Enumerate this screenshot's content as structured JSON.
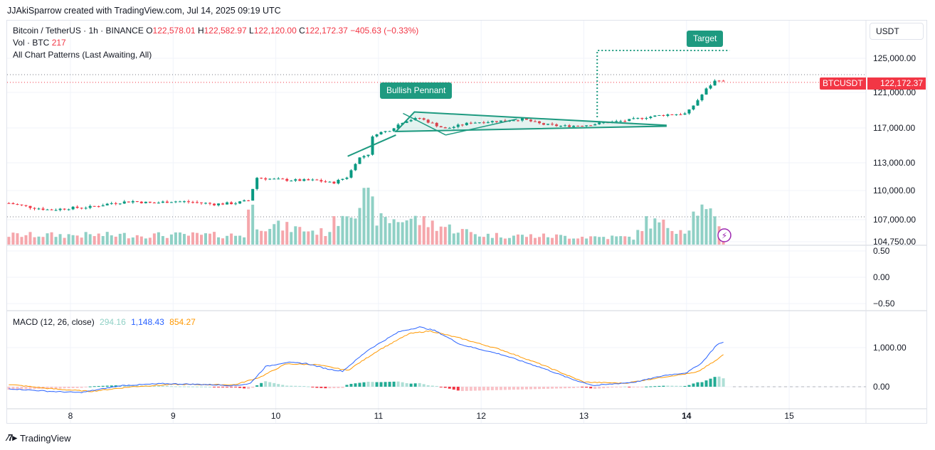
{
  "header": {
    "credit": "JJAkiSparrow created with TradingView.com, Jul 14, 2025 09:19 UTC"
  },
  "legend": {
    "pair": "Bitcoin / TetherUS · 1h · BINANCE",
    "open_label": "O",
    "open": "122,578.01",
    "high_label": "H",
    "high": "122,582.97",
    "low_label": "L",
    "low": "122,120.00",
    "close_label": "C",
    "close": "122,172.37",
    "change": "−405.63 (−0.33%)",
    "volume_label": "Vol · BTC",
    "volume": "217",
    "patterns": "All Chart Patterns (Last Awaiting, All)"
  },
  "currency": "USDT",
  "price_tag": {
    "symbol": "BTCUSDT",
    "price": "122,172.37"
  },
  "labels": {
    "target": "Target",
    "pennant": "Bullish Pennant"
  },
  "macd": {
    "label": "MACD (12, 26, close)",
    "histogram": "294.16",
    "macd": "1,148.43",
    "signal": "854.27"
  },
  "footer": {
    "logo_text": "TradingView",
    "logo_icon": "tradingview-logo-icon"
  },
  "colors": {
    "up": "#089981",
    "down": "#f23645",
    "macd_line": "#2962ff",
    "signal_line": "#ff9800",
    "vol_up": "#8fd0c5",
    "vol_down": "#f5a6ab",
    "pattern": "#1e9a80"
  },
  "chart_data": [
    {
      "type": "candlestick",
      "title": "Bitcoin / TetherUS · 1h · BINANCE",
      "y_axis_ticks": [
        "125,000.00",
        "121,000.00",
        "117,000.00",
        "113,000.00",
        "110,000.00",
        "107,000.00",
        "104,750.00"
      ],
      "x_axis_ticks": [
        "8",
        "9",
        "10",
        "11",
        "12",
        "13",
        "14",
        "15"
      ],
      "ylim": [
        104750,
        126500
      ],
      "last_price": 122172.37,
      "close_path": [
        {
          "t": 7.4,
          "v": 108700
        },
        {
          "t": 7.6,
          "v": 108300
        },
        {
          "t": 7.8,
          "v": 108000
        },
        {
          "t": 8.0,
          "v": 108200
        },
        {
          "t": 8.2,
          "v": 108300
        },
        {
          "t": 8.4,
          "v": 108700
        },
        {
          "t": 8.6,
          "v": 108900
        },
        {
          "t": 8.8,
          "v": 108700
        },
        {
          "t": 9.0,
          "v": 108900
        },
        {
          "t": 9.2,
          "v": 108800
        },
        {
          "t": 9.4,
          "v": 108600
        },
        {
          "t": 9.6,
          "v": 108700
        },
        {
          "t": 9.75,
          "v": 109000
        },
        {
          "t": 9.8,
          "v": 111400
        },
        {
          "t": 10.0,
          "v": 111200
        },
        {
          "t": 10.2,
          "v": 111100
        },
        {
          "t": 10.4,
          "v": 111100
        },
        {
          "t": 10.55,
          "v": 110800
        },
        {
          "t": 10.7,
          "v": 111500
        },
        {
          "t": 10.8,
          "v": 113500
        },
        {
          "t": 10.9,
          "v": 114000
        },
        {
          "t": 10.95,
          "v": 116300
        },
        {
          "t": 11.1,
          "v": 116700
        },
        {
          "t": 11.25,
          "v": 117800
        },
        {
          "t": 11.4,
          "v": 118100
        },
        {
          "t": 11.65,
          "v": 116900
        },
        {
          "t": 11.9,
          "v": 117600
        },
        {
          "t": 12.2,
          "v": 117800
        },
        {
          "t": 12.4,
          "v": 118000
        },
        {
          "t": 12.6,
          "v": 117400
        },
        {
          "t": 12.8,
          "v": 117200
        },
        {
          "t": 13.0,
          "v": 117300
        },
        {
          "t": 13.2,
          "v": 117600
        },
        {
          "t": 13.4,
          "v": 117800
        },
        {
          "t": 13.6,
          "v": 118200
        },
        {
          "t": 13.8,
          "v": 118500
        },
        {
          "t": 14.0,
          "v": 118600
        },
        {
          "t": 14.1,
          "v": 120000
        },
        {
          "t": 14.2,
          "v": 121500
        },
        {
          "t": 14.3,
          "v": 122600
        },
        {
          "t": 14.37,
          "v": 122172
        }
      ],
      "patterns": [
        {
          "name": "Bullish Pennant",
          "flagpole_start": {
            "t": 10.7,
            "v": 111400
          },
          "flagpole_end": {
            "t": 11.35,
            "v": 118000
          },
          "upper": [
            {
              "t": 11.35,
              "v": 118800
            },
            {
              "t": 13.8,
              "v": 117300
            }
          ],
          "lower": [
            {
              "t": 11.17,
              "v": 116600
            },
            {
              "t": 13.8,
              "v": 117200
            }
          ]
        },
        {
          "name": "Target",
          "from": {
            "t": 13.13,
            "v": 118000
          },
          "level": 125400,
          "to_t": 14.42
        }
      ]
    },
    {
      "type": "bar",
      "title": "Vol · BTC",
      "last_value": 217,
      "relative_level_path": [
        {
          "t": 7.4,
          "v": 0.2
        },
        {
          "t": 9.7,
          "v": 0.2
        },
        {
          "t": 9.75,
          "v": 1.0
        },
        {
          "t": 9.8,
          "v": 0.45
        },
        {
          "t": 10.5,
          "v": 0.25
        },
        {
          "t": 10.65,
          "v": 0.7
        },
        {
          "t": 10.9,
          "v": 1.0
        },
        {
          "t": 11.0,
          "v": 0.5
        },
        {
          "t": 11.3,
          "v": 0.55
        },
        {
          "t": 12.0,
          "v": 0.2
        },
        {
          "t": 13.5,
          "v": 0.15
        },
        {
          "t": 13.6,
          "v": 0.5
        },
        {
          "t": 14.0,
          "v": 0.3
        },
        {
          "t": 14.1,
          "v": 0.8
        },
        {
          "t": 14.37,
          "v": 0.35
        }
      ]
    },
    {
      "type": "line",
      "title": "",
      "y_axis_ticks": [
        "0.50",
        "0.00",
        "−0.50"
      ],
      "ylim": [
        -0.5,
        0.5
      ]
    },
    {
      "type": "line",
      "title": "MACD (12, 26, close)",
      "y_axis_ticks": [
        "1,000.00",
        "0.00"
      ],
      "ylim": [
        -220,
        1750
      ],
      "series": [
        {
          "name": "MACD",
          "values": [
            {
              "t": 7.4,
              "v": -50
            },
            {
              "t": 7.8,
              "v": -120
            },
            {
              "t": 8.1,
              "v": -150
            },
            {
              "t": 8.5,
              "v": 30
            },
            {
              "t": 8.9,
              "v": 80
            },
            {
              "t": 9.3,
              "v": 60
            },
            {
              "t": 9.6,
              "v": 30
            },
            {
              "t": 9.75,
              "v": 80
            },
            {
              "t": 9.9,
              "v": 520
            },
            {
              "t": 10.1,
              "v": 630
            },
            {
              "t": 10.3,
              "v": 600
            },
            {
              "t": 10.5,
              "v": 460
            },
            {
              "t": 10.65,
              "v": 400
            },
            {
              "t": 10.9,
              "v": 950
            },
            {
              "t": 11.2,
              "v": 1420
            },
            {
              "t": 11.4,
              "v": 1540
            },
            {
              "t": 11.55,
              "v": 1450
            },
            {
              "t": 11.8,
              "v": 1090
            },
            {
              "t": 12.2,
              "v": 830
            },
            {
              "t": 12.6,
              "v": 480
            },
            {
              "t": 12.9,
              "v": 180
            },
            {
              "t": 13.1,
              "v": 30
            },
            {
              "t": 13.5,
              "v": 120
            },
            {
              "t": 13.8,
              "v": 300
            },
            {
              "t": 14.0,
              "v": 360
            },
            {
              "t": 14.15,
              "v": 620
            },
            {
              "t": 14.3,
              "v": 1100
            },
            {
              "t": 14.37,
              "v": 1148.43
            }
          ]
        },
        {
          "name": "Signal",
          "values": [
            {
              "t": 7.4,
              "v": 60
            },
            {
              "t": 7.8,
              "v": -50
            },
            {
              "t": 8.2,
              "v": -120
            },
            {
              "t": 8.6,
              "v": 0
            },
            {
              "t": 9.0,
              "v": 60
            },
            {
              "t": 9.6,
              "v": 50
            },
            {
              "t": 9.85,
              "v": 250
            },
            {
              "t": 10.1,
              "v": 590
            },
            {
              "t": 10.4,
              "v": 570
            },
            {
              "t": 10.7,
              "v": 420
            },
            {
              "t": 11.0,
              "v": 940
            },
            {
              "t": 11.3,
              "v": 1370
            },
            {
              "t": 11.5,
              "v": 1440
            },
            {
              "t": 11.8,
              "v": 1250
            },
            {
              "t": 12.2,
              "v": 950
            },
            {
              "t": 12.6,
              "v": 560
            },
            {
              "t": 13.0,
              "v": 120
            },
            {
              "t": 13.4,
              "v": 90
            },
            {
              "t": 13.8,
              "v": 260
            },
            {
              "t": 14.1,
              "v": 370
            },
            {
              "t": 14.3,
              "v": 700
            },
            {
              "t": 14.37,
              "v": 854.27
            }
          ]
        }
      ],
      "histogram_last": 294.16
    }
  ]
}
